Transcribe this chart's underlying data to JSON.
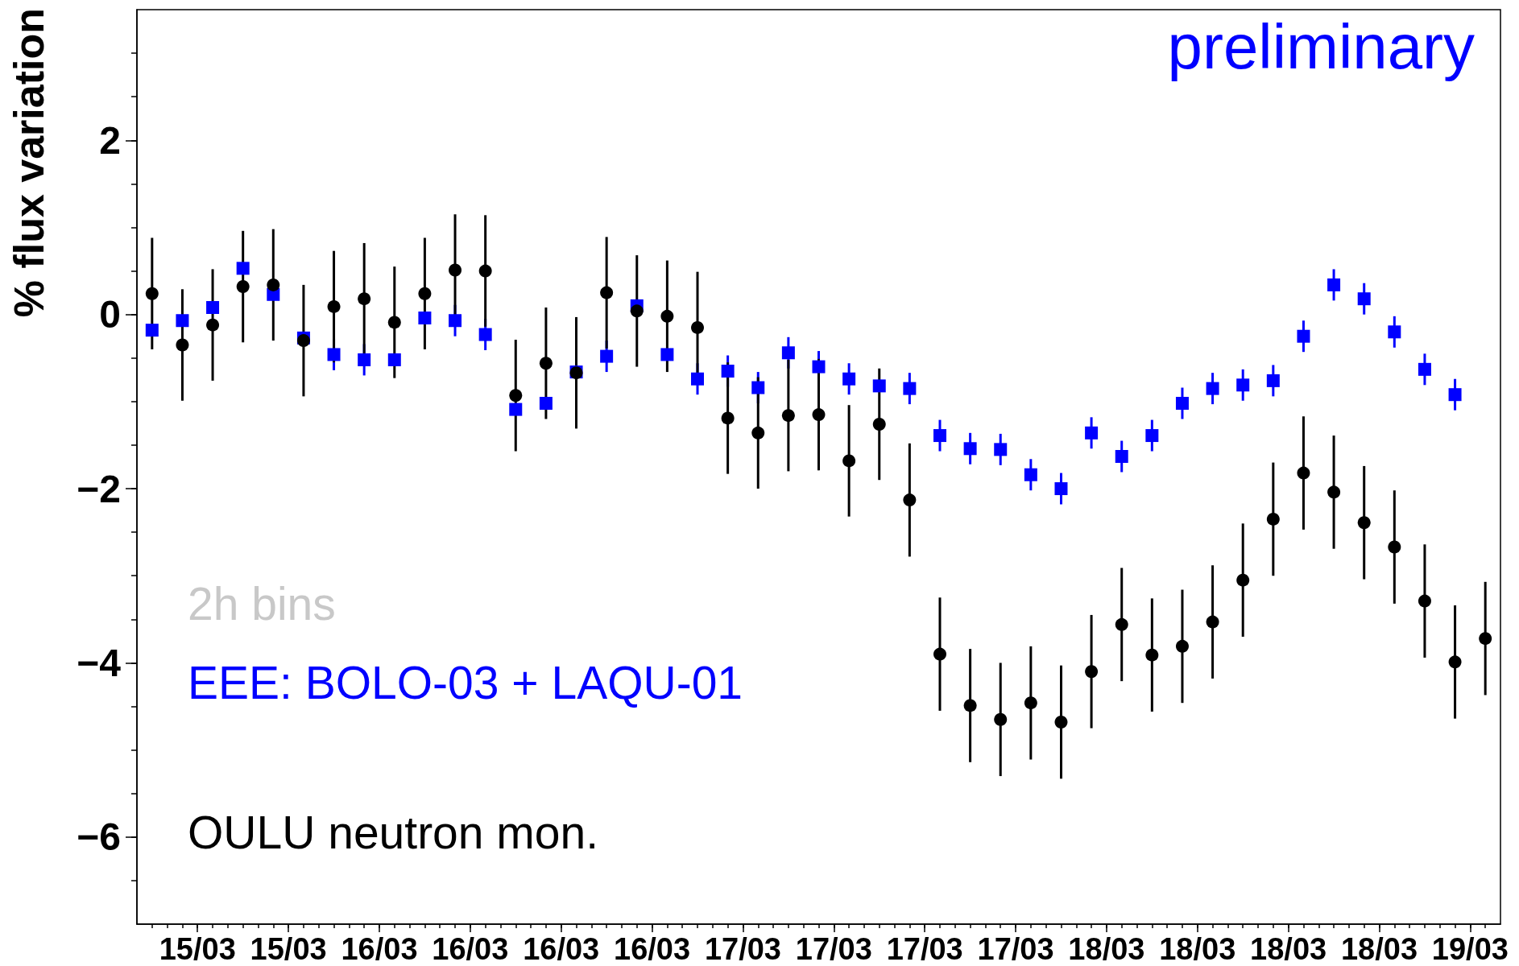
{
  "chart_data": {
    "type": "scatter",
    "ylabel": "% flux variation",
    "annotations": [
      "2h bins",
      "preliminary"
    ],
    "legend": "bottom left",
    "xlim": [
      "--03-15T08:00",
      "--03-19T02:00"
    ],
    "ylim": [
      -7,
      3.5
    ],
    "xticks": [
      {
        "value": "--03-15T09:00",
        "label": null
      },
      {
        "value": "--03-15T10:00",
        "label": null
      },
      {
        "value": "--03-15T11:00",
        "label": null
      },
      {
        "value": "--03-15T12:00",
        "label": "15/03"
      },
      {
        "value": "--03-15T13:00",
        "label": null
      },
      {
        "value": "--03-15T14:00",
        "label": null
      },
      {
        "value": "--03-15T15:00",
        "label": null
      },
      {
        "value": "--03-15T16:00",
        "label": null
      },
      {
        "value": "--03-15T17:00",
        "label": null
      },
      {
        "value": "--03-15T18:00",
        "label": "15/03"
      },
      {
        "value": "--03-15T19:00",
        "label": null
      },
      {
        "value": "--03-15T20:00",
        "label": null
      },
      {
        "value": "--03-15T21:00",
        "label": null
      },
      {
        "value": "--03-15T22:00",
        "label": null
      },
      {
        "value": "--03-15T23:00",
        "label": null
      },
      {
        "value": "--03-16T00:00",
        "label": "16/03"
      },
      {
        "value": "--03-16T01:00",
        "label": null
      },
      {
        "value": "--03-16T02:00",
        "label": null
      },
      {
        "value": "--03-16T03:00",
        "label": null
      },
      {
        "value": "--03-16T04:00",
        "label": null
      },
      {
        "value": "--03-16T05:00",
        "label": null
      },
      {
        "value": "--03-16T06:00",
        "label": "16/03"
      },
      {
        "value": "--03-16T07:00",
        "label": null
      },
      {
        "value": "--03-16T08:00",
        "label": null
      },
      {
        "value": "--03-16T09:00",
        "label": null
      },
      {
        "value": "--03-16T10:00",
        "label": null
      },
      {
        "value": "--03-16T11:00",
        "label": null
      },
      {
        "value": "--03-16T12:00",
        "label": "16/03"
      },
      {
        "value": "--03-16T13:00",
        "label": null
      },
      {
        "value": "--03-16T14:00",
        "label": null
      },
      {
        "value": "--03-16T15:00",
        "label": null
      },
      {
        "value": "--03-16T16:00",
        "label": null
      },
      {
        "value": "--03-16T17:00",
        "label": null
      },
      {
        "value": "--03-16T18:00",
        "label": "16/03"
      },
      {
        "value": "--03-16T19:00",
        "label": null
      },
      {
        "value": "--03-16T20:00",
        "label": null
      },
      {
        "value": "--03-16T21:00",
        "label": null
      },
      {
        "value": "--03-16T22:00",
        "label": null
      },
      {
        "value": "--03-16T23:00",
        "label": null
      },
      {
        "value": "--03-17T00:00",
        "label": "17/03"
      },
      {
        "value": "--03-17T01:00",
        "label": null
      },
      {
        "value": "--03-17T02:00",
        "label": null
      },
      {
        "value": "--03-17T03:00",
        "label": null
      },
      {
        "value": "--03-17T04:00",
        "label": null
      },
      {
        "value": "--03-17T05:00",
        "label": null
      },
      {
        "value": "--03-17T06:00",
        "label": "17/03"
      },
      {
        "value": "--03-17T07:00",
        "label": null
      },
      {
        "value": "--03-17T08:00",
        "label": null
      },
      {
        "value": "--03-17T09:00",
        "label": null
      },
      {
        "value": "--03-17T10:00",
        "label": null
      },
      {
        "value": "--03-17T11:00",
        "label": null
      },
      {
        "value": "--03-17T12:00",
        "label": "17/03"
      },
      {
        "value": "--03-17T13:00",
        "label": null
      },
      {
        "value": "--03-17T14:00",
        "label": null
      },
      {
        "value": "--03-17T15:00",
        "label": null
      },
      {
        "value": "--03-17T16:00",
        "label": null
      },
      {
        "value": "--03-17T17:00",
        "label": null
      },
      {
        "value": "--03-17T18:00",
        "label": "17/03"
      },
      {
        "value": "--03-17T19:00",
        "label": null
      },
      {
        "value": "--03-17T20:00",
        "label": null
      },
      {
        "value": "--03-17T21:00",
        "label": null
      },
      {
        "value": "--03-17T22:00",
        "label": null
      },
      {
        "value": "--03-17T23:00",
        "label": null
      },
      {
        "value": "--03-18T00:00",
        "label": "18/03"
      },
      {
        "value": "--03-18T01:00",
        "label": null
      },
      {
        "value": "--03-18T02:00",
        "label": null
      },
      {
        "value": "--03-18T03:00",
        "label": null
      },
      {
        "value": "--03-18T04:00",
        "label": null
      },
      {
        "value": "--03-18T05:00",
        "label": null
      },
      {
        "value": "--03-18T06:00",
        "label": "18/03"
      },
      {
        "value": "--03-18T07:00",
        "label": null
      },
      {
        "value": "--03-18T08:00",
        "label": null
      },
      {
        "value": "--03-18T09:00",
        "label": null
      },
      {
        "value": "--03-18T10:00",
        "label": null
      },
      {
        "value": "--03-18T11:00",
        "label": null
      },
      {
        "value": "--03-18T12:00",
        "label": "18/03"
      },
      {
        "value": "--03-18T13:00",
        "label": null
      },
      {
        "value": "--03-18T14:00",
        "label": null
      },
      {
        "value": "--03-18T15:00",
        "label": null
      },
      {
        "value": "--03-18T16:00",
        "label": null
      },
      {
        "value": "--03-18T17:00",
        "label": null
      },
      {
        "value": "--03-18T18:00",
        "label": "18/03"
      },
      {
        "value": "--03-18T19:00",
        "label": null
      },
      {
        "value": "--03-18T20:00",
        "label": null
      },
      {
        "value": "--03-18T21:00",
        "label": null
      },
      {
        "value": "--03-18T22:00",
        "label": null
      },
      {
        "value": "--03-18T23:00",
        "label": null
      },
      {
        "value": "--03-19T00:00",
        "label": "19/03"
      },
      {
        "value": "--03-19T01:00",
        "label": null
      }
    ],
    "yticks": [
      {
        "value": -6.5,
        "label": null
      },
      {
        "value": -6,
        "label": "−6"
      },
      {
        "value": -5.5,
        "label": null
      },
      {
        "value": -5,
        "label": null
      },
      {
        "value": -4.5,
        "label": null
      },
      {
        "value": -4,
        "label": "−4"
      },
      {
        "value": -3.5,
        "label": null
      },
      {
        "value": -3,
        "label": null
      },
      {
        "value": -2.5,
        "label": null
      },
      {
        "value": -2,
        "label": "−2"
      },
      {
        "value": -1.5,
        "label": null
      },
      {
        "value": -1,
        "label": null
      },
      {
        "value": -0.5,
        "label": null
      },
      0,
      {
        "value": 0.5,
        "label": null
      },
      {
        "value": 1,
        "label": null
      },
      {
        "value": 1.5,
        "label": null
      },
      2,
      {
        "value": 2.5,
        "label": null
      },
      {
        "value": 3,
        "label": null
      }
    ],
    "x": [
      "--03-15T09:00",
      "--03-15T11:00",
      "--03-15T13:00",
      "--03-15T15:00",
      "--03-15T17:00",
      "--03-15T19:00",
      "--03-15T21:00",
      "--03-15T23:00",
      "--03-16T01:00",
      "--03-16T03:00",
      "--03-16T05:00",
      "--03-16T07:00",
      "--03-16T09:00",
      "--03-16T11:00",
      "--03-16T13:00",
      "--03-16T15:00",
      "--03-16T17:00",
      "--03-16T19:00",
      "--03-16T21:00",
      "--03-16T23:00",
      "--03-17T01:00",
      "--03-17T03:00",
      "--03-17T05:00",
      "--03-17T07:00",
      "--03-17T09:00",
      "--03-17T11:00",
      "--03-17T13:00",
      "--03-17T15:00",
      "--03-17T17:00",
      "--03-17T19:00",
      "--03-17T21:00",
      "--03-17T23:00",
      "--03-18T01:00",
      "--03-18T03:00",
      "--03-18T05:00",
      "--03-18T07:00",
      "--03-18T09:00",
      "--03-18T11:00",
      "--03-18T13:00",
      "--03-18T15:00",
      "--03-18T17:00",
      "--03-18T19:00",
      "--03-18T21:00",
      "--03-18T23:00",
      "--03-19T01:00"
    ],
    "series": [
      {
        "name": "EEE: BOLO-03 + LAQU-01",
        "color": "#0000ff",
        "marker": "square",
        "values": [
          -0.18,
          -0.07,
          0.08,
          0.53,
          0.23,
          -0.27,
          -0.46,
          -0.52,
          -0.52,
          -0.04,
          -0.07,
          -0.23,
          -1.09,
          -1.02,
          -0.66,
          -0.48,
          0.1,
          -0.46,
          -0.74,
          -0.65,
          -0.84,
          -0.44,
          -0.6,
          -0.74,
          -0.82,
          -0.85,
          -1.39,
          -1.54,
          -1.55,
          -1.84,
          -2.0,
          -1.36,
          -1.63,
          -1.39,
          -1.02,
          -0.85,
          -0.81,
          -0.76,
          -0.25,
          0.34,
          0.18,
          -0.2,
          -0.63,
          -0.92,
          null
        ],
        "errors": [
          null,
          null,
          null,
          null,
          null,
          null,
          0.18,
          0.18,
          null,
          null,
          0.18,
          0.18,
          null,
          null,
          null,
          0.18,
          null,
          null,
          0.18,
          0.18,
          0.18,
          0.18,
          0.18,
          0.18,
          null,
          0.18,
          0.18,
          0.18,
          0.18,
          0.18,
          0.18,
          0.18,
          0.18,
          0.18,
          0.18,
          0.18,
          0.18,
          0.18,
          0.18,
          0.18,
          0.18,
          0.18,
          0.18,
          0.18,
          null
        ]
      },
      {
        "name": "OULU neutron mon.",
        "color": "#000000",
        "marker": "circle",
        "values": [
          0.24,
          -0.35,
          -0.12,
          0.32,
          0.34,
          -0.3,
          0.09,
          0.18,
          -0.09,
          0.24,
          0.51,
          0.5,
          -0.93,
          -0.56,
          -0.67,
          0.25,
          0.04,
          -0.02,
          -0.15,
          -1.19,
          -1.36,
          -1.16,
          -1.15,
          -1.68,
          -1.26,
          -2.13,
          -3.9,
          -4.49,
          -4.65,
          -4.46,
          -4.68,
          -4.1,
          -3.56,
          -3.91,
          -3.81,
          -3.53,
          -3.05,
          -2.35,
          -1.82,
          -2.04,
          -2.39,
          -2.67,
          -3.29,
          -3.99,
          -3.72
        ],
        "errors": [
          0.64,
          0.64,
          0.64,
          0.64,
          0.64,
          0.64,
          0.64,
          0.64,
          0.64,
          0.64,
          0.64,
          0.64,
          0.64,
          0.64,
          0.64,
          0.64,
          0.64,
          0.64,
          0.64,
          0.64,
          0.64,
          0.64,
          0.64,
          0.64,
          0.64,
          0.65,
          0.65,
          0.65,
          0.65,
          0.65,
          0.65,
          0.65,
          0.65,
          0.65,
          0.65,
          0.65,
          0.65,
          0.65,
          0.65,
          0.65,
          0.65,
          0.65,
          0.65,
          0.65,
          0.65
        ]
      }
    ]
  }
}
